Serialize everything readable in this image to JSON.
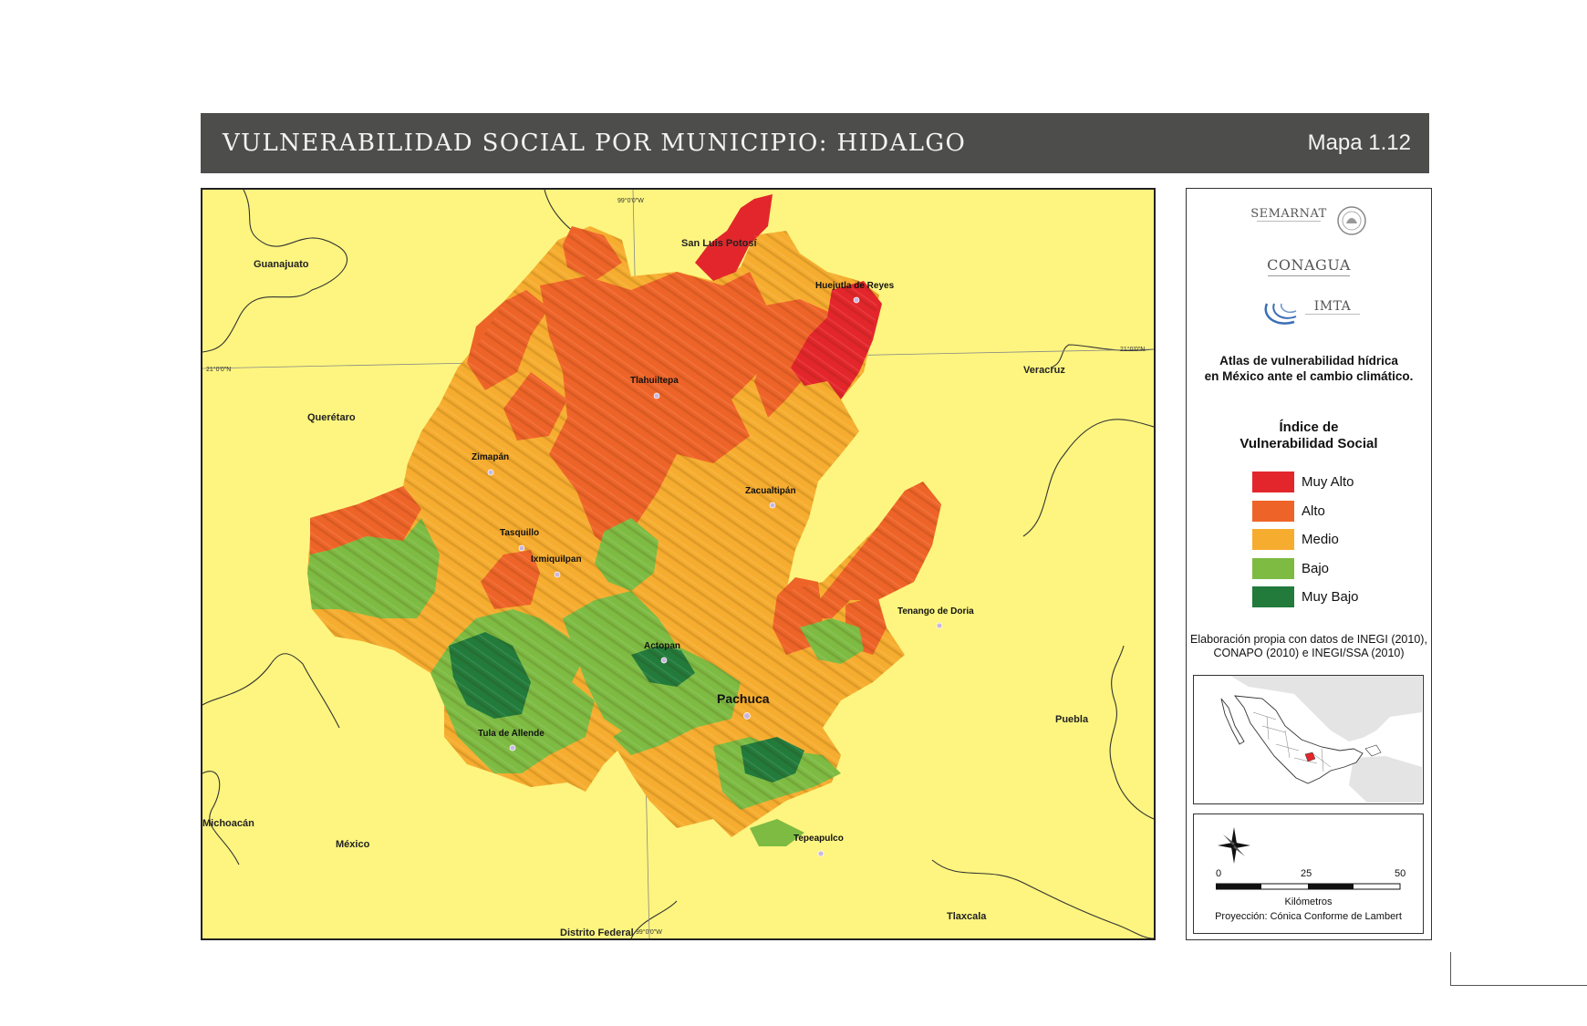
{
  "header": {
    "title": "VULNERABILIDAD SOCIAL POR MUNICIPIO: HIDALGO",
    "map_number": "Mapa 1.12"
  },
  "map": {
    "states": [
      "San Luis Potosí",
      "Guanajuato",
      "Querétaro",
      "Veracruz",
      "Puebla",
      "Michoacán",
      "México",
      "Distrito Federal",
      "Tlaxcala"
    ],
    "cities": [
      "Huejutla de Reyes",
      "Tlahuiltepa",
      "Zimapán",
      "Zacualtipán",
      "Tasquillo",
      "Ixmiquilpan",
      "Tenango de Doria",
      "Actopan",
      "Pachuca",
      "Tula de Allende",
      "Tepeapulco"
    ],
    "graticule": {
      "top_lon": "99°0'0\"W",
      "bottom_lon": "99°0'0\"W",
      "left_lat": "21°0'0\"N",
      "right_lat": "21°0'0\"N"
    }
  },
  "sidebar": {
    "logos": {
      "semarnat": "SEMARNAT",
      "conagua": "CONAGUA",
      "imta": "IMTA"
    },
    "atlas_title": [
      "Atlas de vulnerabilidad  hídrica",
      "en México ante el cambio climático."
    ],
    "legend_title": [
      "Índice de",
      "Vulnerabilidad Social"
    ],
    "legend": [
      {
        "label": "Muy Alto",
        "color": "#e3262b"
      },
      {
        "label": "Alto",
        "color": "#ee6428"
      },
      {
        "label": "Medio",
        "color": "#f6ad2f"
      },
      {
        "label": "Bajo",
        "color": "#7dbb43"
      },
      {
        "label": "Muy Bajo",
        "color": "#227a3b"
      }
    ],
    "source": [
      "Elaboración propia con datos de INEGI (2010),",
      "CONAPO (2010) e INEGI/SSA (2010)"
    ],
    "scale": {
      "ticks": [
        "0",
        "25",
        "50"
      ],
      "units": "Kilómetros",
      "projection": "Proyección: Cónica Conforme de Lambert"
    }
  }
}
